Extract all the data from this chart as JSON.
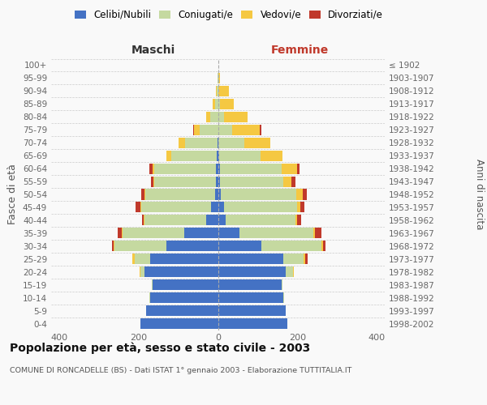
{
  "age_groups": [
    "0-4",
    "5-9",
    "10-14",
    "15-19",
    "20-24",
    "25-29",
    "30-34",
    "35-39",
    "40-44",
    "45-49",
    "50-54",
    "55-59",
    "60-64",
    "65-69",
    "70-74",
    "75-79",
    "80-84",
    "85-89",
    "90-94",
    "95-99",
    "100+"
  ],
  "birth_years": [
    "1998-2002",
    "1993-1997",
    "1988-1992",
    "1983-1987",
    "1978-1982",
    "1973-1977",
    "1968-1972",
    "1963-1967",
    "1958-1962",
    "1953-1957",
    "1948-1952",
    "1943-1947",
    "1938-1942",
    "1933-1937",
    "1928-1932",
    "1923-1927",
    "1918-1922",
    "1913-1917",
    "1908-1912",
    "1903-1907",
    "≤ 1902"
  ],
  "males": {
    "single": [
      195,
      180,
      170,
      165,
      185,
      170,
      130,
      85,
      30,
      18,
      8,
      5,
      5,
      3,
      2,
      0,
      0,
      0,
      0,
      0,
      0
    ],
    "married": [
      0,
      0,
      2,
      2,
      10,
      40,
      130,
      155,
      155,
      175,
      175,
      155,
      155,
      115,
      80,
      45,
      20,
      8,
      3,
      1,
      0
    ],
    "widowed": [
      0,
      0,
      0,
      0,
      2,
      5,
      2,
      2,
      2,
      2,
      2,
      3,
      5,
      12,
      18,
      15,
      10,
      5,
      3,
      0,
      0
    ],
    "divorced": [
      0,
      0,
      0,
      0,
      0,
      0,
      5,
      10,
      5,
      12,
      8,
      5,
      8,
      0,
      0,
      2,
      0,
      0,
      0,
      0,
      0
    ]
  },
  "females": {
    "single": [
      175,
      170,
      165,
      160,
      170,
      165,
      110,
      55,
      20,
      15,
      8,
      5,
      5,
      3,
      2,
      0,
      0,
      0,
      0,
      0,
      0
    ],
    "married": [
      0,
      0,
      2,
      2,
      20,
      50,
      150,
      185,
      175,
      185,
      190,
      160,
      155,
      105,
      65,
      35,
      15,
      5,
      2,
      0,
      0
    ],
    "widowed": [
      0,
      0,
      0,
      0,
      2,
      5,
      5,
      5,
      5,
      8,
      15,
      20,
      40,
      55,
      65,
      70,
      60,
      35,
      25,
      5,
      0
    ],
    "divorced": [
      0,
      0,
      0,
      0,
      0,
      5,
      5,
      15,
      10,
      10,
      10,
      10,
      5,
      0,
      0,
      5,
      0,
      0,
      0,
      0,
      0
    ]
  },
  "colors": {
    "single": "#4472C4",
    "married": "#c5d9a0",
    "widowed": "#f5c842",
    "divorced": "#c0392b"
  },
  "xlim": 420,
  "title": "Popolazione per età, sesso e stato civile - 2003",
  "subtitle": "COMUNE DI RONCADELLE (BS) - Dati ISTAT 1° gennaio 2003 - Elaborazione TUTTITALIA.IT",
  "ylabel_left": "Fasce di età",
  "ylabel_right": "Anni di nascita",
  "xlabel_left": "Maschi",
  "xlabel_right": "Femmine",
  "bg_color": "#f9f9f9",
  "grid_color": "#cccccc"
}
